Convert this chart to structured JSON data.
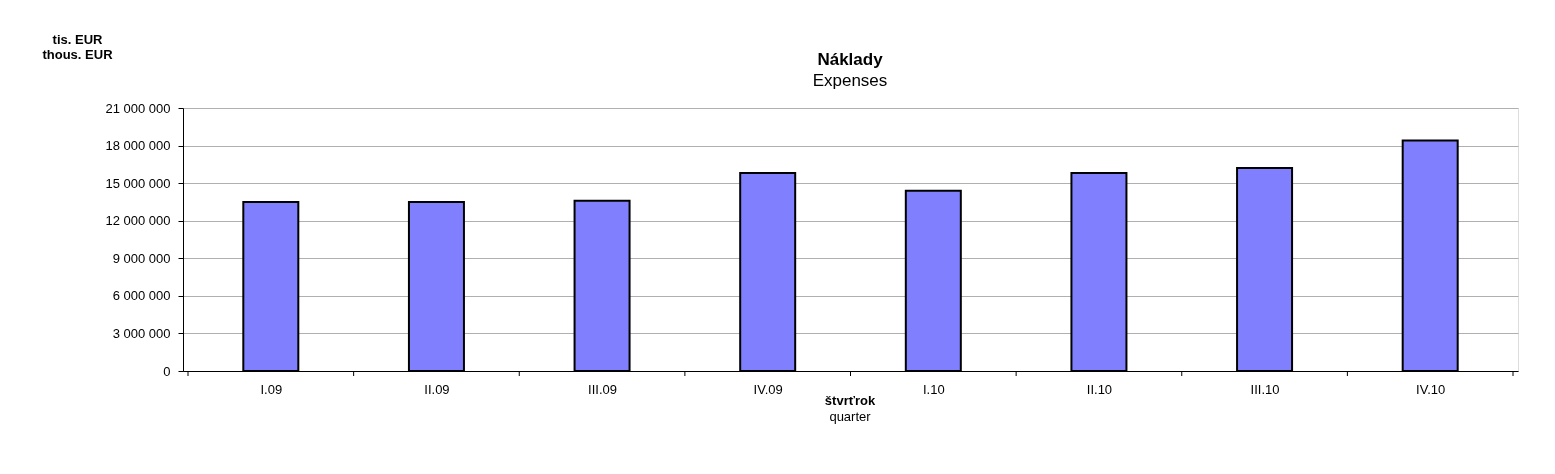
{
  "chart_data": {
    "type": "bar",
    "title": "Náklady",
    "subtitle": "Expenses",
    "ylabel": "tis. EUR\nthous. EUR",
    "xlabel": "štvrťrok\nquarter",
    "categories": [
      "I.09",
      "II.09",
      "III.09",
      "IV.09",
      "I.10",
      "II.10",
      "III.10",
      "IV.10"
    ],
    "values": [
      13500000,
      13500000,
      13600000,
      15800000,
      14400000,
      15800000,
      16200000,
      18400000
    ],
    "color": "#8080ff",
    "ylim": [
      0,
      21000000
    ],
    "yticks": [
      0,
      3000000,
      6000000,
      9000000,
      12000000,
      15000000,
      18000000,
      21000000
    ],
    "grid": "y"
  }
}
